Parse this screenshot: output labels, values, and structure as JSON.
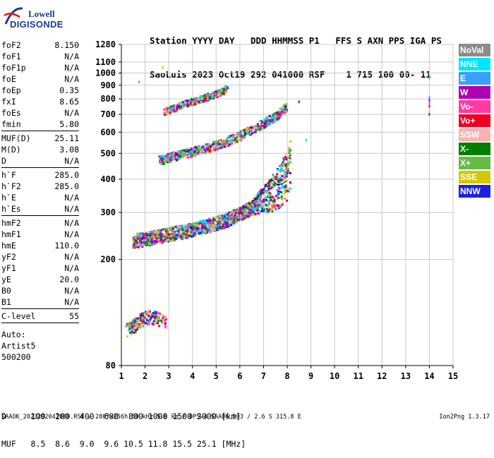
{
  "logo": {
    "top": "Lowell",
    "bottom": "DIGISONDE"
  },
  "header": {
    "line1": "Station YYYY DAY   DDD HHMMSS P1   FFS S AXN PPS IGA PS",
    "line2": "SaoLuis 2023 Oct19 292 041000 RSF    1 715 100 00- 11"
  },
  "params": {
    "group1": [
      {
        "k": "foF2",
        "v": "8.150"
      },
      {
        "k": "foF1",
        "v": "N/A"
      },
      {
        "k": "foF1p",
        "v": "N/A"
      },
      {
        "k": "foE",
        "v": "N/A"
      },
      {
        "k": "foEp",
        "v": "0.35"
      },
      {
        "k": "fxI",
        "v": "8.65"
      },
      {
        "k": "foEs",
        "v": "N/A"
      },
      {
        "k": "fmin",
        "v": "5.80"
      }
    ],
    "group2": [
      {
        "k": "MUF(D)",
        "v": "25.11"
      },
      {
        "k": "M(D)",
        "v": "3.08"
      },
      {
        "k": "D",
        "v": "N/A"
      }
    ],
    "group3": [
      {
        "k": "h`F",
        "v": "285.0"
      },
      {
        "k": "h`F2",
        "v": "285.0"
      },
      {
        "k": "h`E",
        "v": "N/A"
      },
      {
        "k": "h`Es",
        "v": "N/A"
      }
    ],
    "group4": [
      {
        "k": "hmF2",
        "v": "N/A"
      },
      {
        "k": "hmF1",
        "v": "N/A"
      },
      {
        "k": "hmE",
        "v": "110.0"
      },
      {
        "k": "yF2",
        "v": "N/A"
      },
      {
        "k": "yF1",
        "v": "N/A"
      },
      {
        "k": "yE",
        "v": "20.0"
      },
      {
        "k": "B0",
        "v": "N/A"
      },
      {
        "k": "B1",
        "v": "N/A"
      }
    ],
    "group5": [
      {
        "k": "C-level",
        "v": "55"
      }
    ],
    "auto": [
      "Auto:",
      "Artist5",
      "500200"
    ]
  },
  "legend": [
    {
      "label": "NoVal",
      "color": "#8c8c8c"
    },
    {
      "label": "NNE",
      "color": "#00e5ff"
    },
    {
      "label": "E",
      "color": "#3aa0ff"
    },
    {
      "label": "W",
      "color": "#b000b0"
    },
    {
      "label": "Vo-",
      "color": "#ff3aa0"
    },
    {
      "label": "Vo+",
      "color": "#ee0022"
    },
    {
      "label": "SSW",
      "color": "#ffb0b0"
    },
    {
      "label": "X-",
      "color": "#008000"
    },
    {
      "label": "X+",
      "color": "#66bb44"
    },
    {
      "label": "SSE",
      "color": "#d4c800"
    },
    {
      "label": "NNW",
      "color": "#2020e0"
    }
  ],
  "bottom": {
    "line1": "D     100  200  400  600  800 1000 1500 3000 [km]",
    "line2": "MUF   8.5  8.6  9.0  9.6 10.5 11.8 15.5 25.1 [MHz]"
  },
  "footer": {
    "left": "SAAOK_2023292041000.RSF / 280fx256h 50 kHz 5.0 km / DPS-4 SAAOK 903 / 2.6 S 315.8 E",
    "right": "Ion2Png 1.3.17"
  },
  "chart_data": {
    "type": "scatter",
    "x_range": [
      1,
      15
    ],
    "y_range": [
      80,
      1280
    ],
    "x_ticks": [
      1,
      2,
      3,
      4,
      5,
      6,
      7,
      8,
      9,
      10,
      11,
      12,
      13,
      14,
      15
    ],
    "y_ticks": [
      80,
      200,
      300,
      400,
      500,
      600,
      700,
      800,
      900,
      1000,
      1100,
      1280
    ],
    "y_scale": "log",
    "grid": true,
    "traces": [
      {
        "name": "1st hop F2",
        "points": [
          [
            1.5,
            235
          ],
          [
            2.0,
            238
          ],
          [
            2.5,
            243
          ],
          [
            3.0,
            248
          ],
          [
            3.5,
            253
          ],
          [
            4.0,
            258
          ],
          [
            4.5,
            265
          ],
          [
            5.0,
            272
          ],
          [
            5.5,
            282
          ],
          [
            6.0,
            296
          ],
          [
            6.5,
            312
          ],
          [
            7.0,
            335
          ],
          [
            7.5,
            365
          ],
          [
            7.8,
            395
          ],
          [
            8.0,
            420
          ],
          [
            8.15,
            460
          ]
        ],
        "spread": 0.06
      },
      {
        "name": "2nd hop F2",
        "points": [
          [
            2.6,
            470
          ],
          [
            3.0,
            480
          ],
          [
            3.5,
            492
          ],
          [
            4.0,
            505
          ],
          [
            4.5,
            518
          ],
          [
            5.0,
            535
          ],
          [
            5.5,
            555
          ],
          [
            6.0,
            580
          ],
          [
            6.5,
            610
          ],
          [
            7.0,
            645
          ],
          [
            7.5,
            685
          ],
          [
            7.8,
            720
          ],
          [
            8.0,
            750
          ]
        ],
        "spread": 0.04
      },
      {
        "name": "3rd hop F2",
        "points": [
          [
            2.8,
            715
          ],
          [
            3.2,
            735
          ],
          [
            3.6,
            760
          ],
          [
            4.0,
            780
          ],
          [
            4.5,
            805
          ],
          [
            5.0,
            830
          ],
          [
            5.3,
            855
          ],
          [
            5.5,
            880
          ]
        ],
        "spread": 0.03
      },
      {
        "name": "E echoes",
        "points": [
          [
            1.2,
            108
          ],
          [
            1.5,
            112
          ],
          [
            1.8,
            118
          ],
          [
            2.2,
            122
          ],
          [
            2.5,
            120
          ],
          [
            2.9,
            115
          ]
        ],
        "spread": 0.06
      }
    ],
    "fitted_curve": [
      [
        6.4,
        320
      ],
      [
        6.7,
        340
      ],
      [
        7.0,
        365
      ],
      [
        7.2,
        390
      ],
      [
        7.4,
        395
      ],
      [
        7.6,
        380
      ],
      [
        7.8,
        385
      ],
      [
        8.0,
        395
      ]
    ],
    "isolated_points": [
      [
        14.0,
        955
      ],
      [
        14.0,
        810
      ],
      [
        14.0,
        790
      ],
      [
        14.0,
        770
      ],
      [
        14.0,
        750
      ],
      [
        14.0,
        725
      ],
      [
        14.0,
        700
      ],
      [
        1.75,
        925
      ],
      [
        2.75,
        1050
      ],
      [
        8.5,
        780
      ],
      [
        8.8,
        560
      ]
    ]
  }
}
